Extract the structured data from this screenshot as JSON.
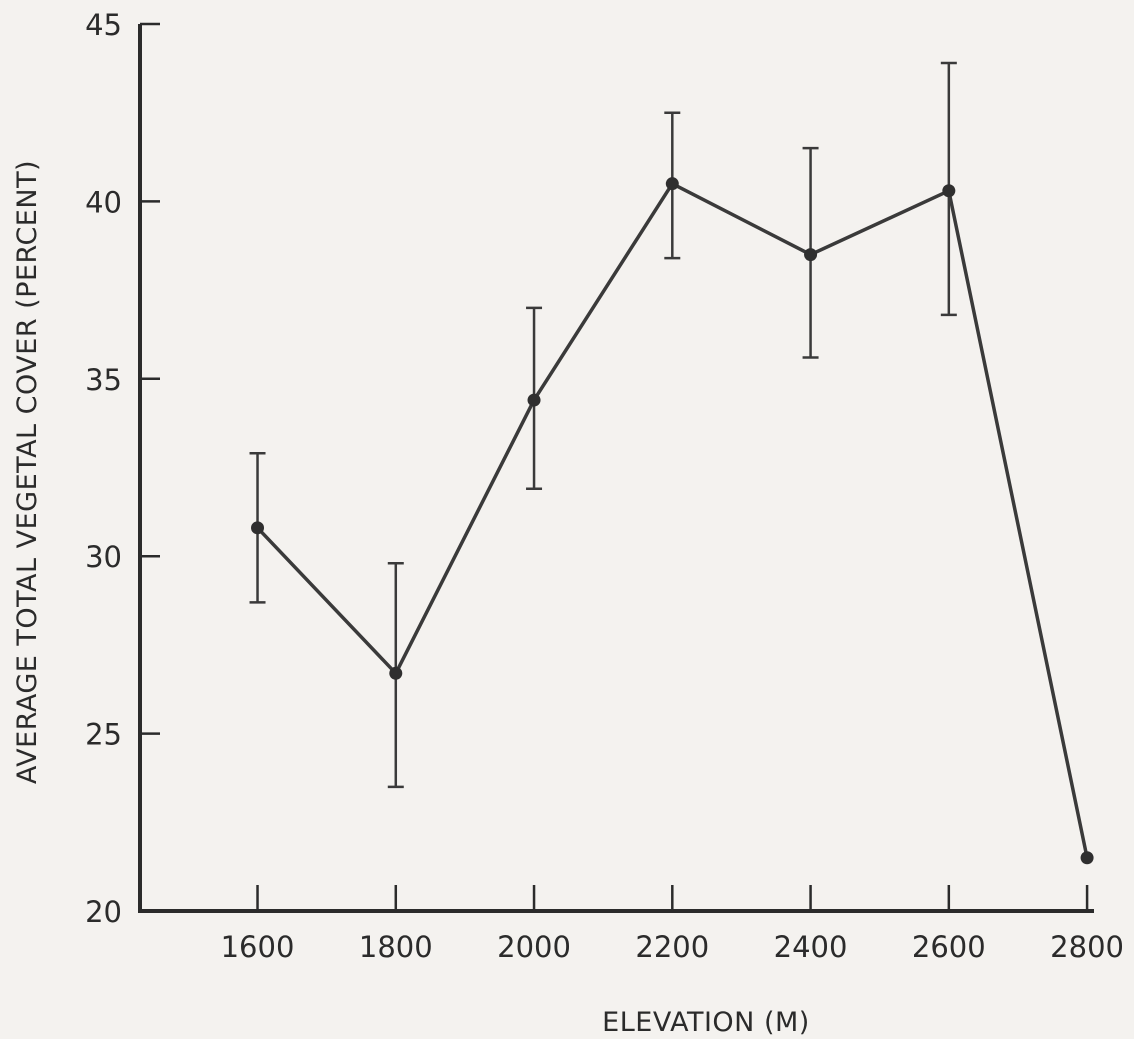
{
  "chart_data": {
    "type": "line",
    "title": "",
    "xlabel": "ELEVATION (M)",
    "ylabel": "AVERAGE TOTAL VEGETAL COVER (PERCENT)",
    "xlim": [
      1430,
      2810
    ],
    "ylim": [
      20,
      45
    ],
    "x_ticks": [
      1600,
      1800,
      2000,
      2200,
      2400,
      2600,
      2800
    ],
    "y_ticks": [
      20,
      25,
      30,
      35,
      40,
      45
    ],
    "grid": false,
    "series": [
      {
        "x": [
          1600,
          1800,
          2000,
          2200,
          2400,
          2600,
          2800
        ],
        "y": [
          30.8,
          26.7,
          34.4,
          40.5,
          38.5,
          40.3,
          21.5
        ],
        "err_low": [
          28.7,
          23.5,
          31.9,
          38.4,
          35.6,
          36.8,
          null
        ],
        "err_high": [
          32.9,
          29.8,
          37.0,
          42.5,
          41.5,
          43.9,
          null
        ]
      }
    ]
  }
}
